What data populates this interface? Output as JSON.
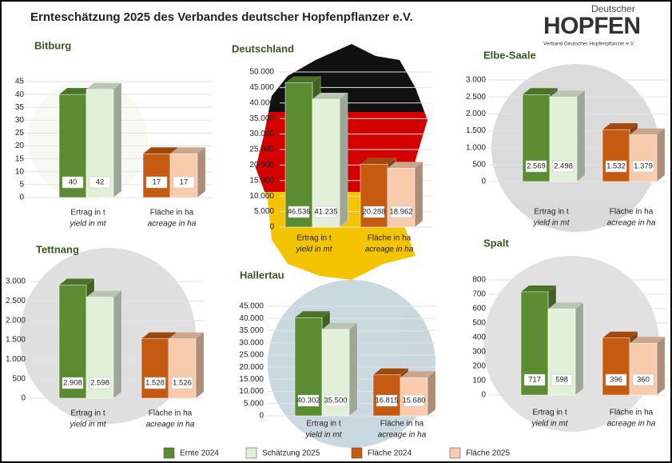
{
  "title": "Ernteschätzung 2025 des Verbandes deutscher Hopfenpflanzer e.V.",
  "logo": {
    "top": "Deutscher",
    "main": "HOPFEN",
    "sub": "Verband Deutscher Hopfenpflanzer e.V."
  },
  "legend": {
    "series": [
      {
        "name": "Ernte 2024",
        "color": "#5b8c32"
      },
      {
        "name": "Schätzung 2025",
        "color": "#e2f0d9"
      },
      {
        "name": "Fläche 2024",
        "color": "#c55a11"
      },
      {
        "name": "Fläche 2025",
        "color": "#f8cbad"
      }
    ]
  },
  "chart_data": [
    {
      "type": "bar",
      "title": "Bitburg",
      "groups": [
        {
          "label": "Ertrag in t",
          "sublabel": "yield in mt"
        },
        {
          "label": "Fläche in ha",
          "sublabel": "acreage in ha"
        }
      ],
      "values": [
        40,
        42,
        17,
        17
      ],
      "ylim": [
        0,
        45
      ],
      "yticks": [
        0,
        5,
        10,
        15,
        20,
        25,
        30,
        35,
        40,
        45
      ],
      "grid": true
    },
    {
      "type": "bar",
      "title": "Deutschland",
      "groups": [
        {
          "label": "Ertrag in t",
          "sublabel": "yield in mt"
        },
        {
          "label": "Fläche in ha",
          "sublabel": "acreage in ha"
        }
      ],
      "values": [
        46536,
        41235,
        20288,
        18962
      ],
      "value_labels": [
        "46.536",
        "41.235",
        "20.288",
        "18.962"
      ],
      "ylim": [
        0,
        50000
      ],
      "yticks": [
        0,
        {
          "value": 5000,
          "label": "5.000"
        },
        {
          "value": 10000,
          "label": "10.000"
        },
        {
          "value": 15000,
          "label": "15.000"
        },
        {
          "value": 20000,
          "label": "20.000"
        },
        {
          "value": 25000,
          "label": "25.000"
        },
        {
          "value": 30000,
          "label": "30.000"
        },
        {
          "value": 35000,
          "label": "35.000"
        },
        {
          "value": 40000,
          "label": "40.000"
        },
        {
          "value": 45000,
          "label": "45.000"
        },
        {
          "value": 50000,
          "label": "50.000"
        }
      ],
      "grid": true
    },
    {
      "type": "bar",
      "title": "Elbe-Saale",
      "groups": [
        {
          "label": "Ertrag in t",
          "sublabel": "yield in mt"
        },
        {
          "label": "Fläche in ha",
          "sublabel": "acreage in ha"
        }
      ],
      "values": [
        2569,
        2498,
        1532,
        1379
      ],
      "value_labels": [
        "2.569",
        "2.498",
        "1.532",
        "1.379"
      ],
      "ylim": [
        0,
        3000
      ],
      "yticks": [
        0,
        500,
        {
          "value": 1000,
          "label": "1.000"
        },
        {
          "value": 1500,
          "label": "1.500"
        },
        {
          "value": 2000,
          "label": "2.000"
        },
        {
          "value": 2500,
          "label": "2.500"
        },
        {
          "value": 3000,
          "label": "3.000"
        }
      ],
      "grid": true
    },
    {
      "type": "bar",
      "title": "Tettnang",
      "groups": [
        {
          "label": "Ertrag in t",
          "sublabel": "yield in mt"
        },
        {
          "label": "Fläche in ha",
          "sublabel": "acreage in ha"
        }
      ],
      "values": [
        2908,
        2598,
        1528,
        1526
      ],
      "value_labels": [
        "2.908",
        "2.598",
        "1.528",
        "1.526"
      ],
      "ylim": [
        0,
        3000
      ],
      "yticks": [
        0,
        500,
        {
          "value": 1000,
          "label": "1.000"
        },
        {
          "value": 1500,
          "label": "1.500"
        },
        {
          "value": 2000,
          "label": "2.000"
        },
        {
          "value": 2500,
          "label": "2.500"
        },
        {
          "value": 3000,
          "label": "3.000"
        }
      ],
      "grid": true
    },
    {
      "type": "bar",
      "title": "Hallertau",
      "groups": [
        {
          "label": "Ertrag in t",
          "sublabel": "yield in mt"
        },
        {
          "label": "Fläche in ha",
          "sublabel": "acreage in ha"
        }
      ],
      "values": [
        40302,
        35500,
        16815,
        15680
      ],
      "value_labels": [
        "40.302",
        "35.500",
        "16.815",
        "15.680"
      ],
      "ylim": [
        0,
        45000
      ],
      "yticks": [
        0,
        {
          "value": 5000,
          "label": "5.000"
        },
        {
          "value": 10000,
          "label": "10.000"
        },
        {
          "value": 15000,
          "label": "15.000"
        },
        {
          "value": 20000,
          "label": "20.000"
        },
        {
          "value": 25000,
          "label": "25.000"
        },
        {
          "value": 30000,
          "label": "30.000"
        },
        {
          "value": 35000,
          "label": "35.000"
        },
        {
          "value": 40000,
          "label": "40.000"
        },
        {
          "value": 45000,
          "label": "45.000"
        }
      ],
      "grid": true
    },
    {
      "type": "bar",
      "title": "Spalt",
      "groups": [
        {
          "label": "Ertrag in t",
          "sublabel": "yield in mt"
        },
        {
          "label": "Fläche in ha",
          "sublabel": "acreage in ha"
        }
      ],
      "values": [
        717,
        598,
        396,
        360
      ],
      "ylim": [
        0,
        800
      ],
      "yticks": [
        0,
        100,
        200,
        300,
        400,
        500,
        600,
        700,
        800
      ],
      "grid": true
    }
  ]
}
